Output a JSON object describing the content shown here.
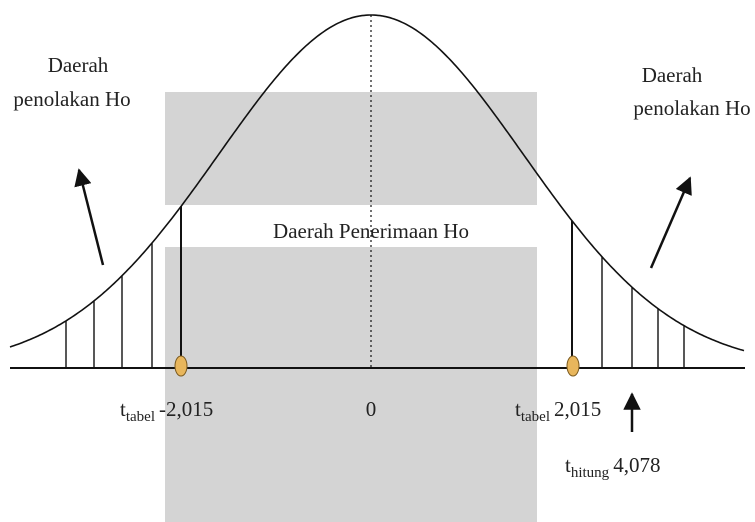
{
  "rejection_left": {
    "line1": "Daerah",
    "line2": "penolakan Ho"
  },
  "rejection_right": {
    "line1": "Daerah",
    "line2": "penolakan Ho"
  },
  "acceptance": "Daerah Penerimaan Ho",
  "center": "0",
  "t_table_left": {
    "symbol": "t",
    "subscript": "tabel",
    "value": "-2,015"
  },
  "t_table_right": {
    "symbol": "t",
    "subscript": "tabel",
    "value": "2,015"
  },
  "t_count": {
    "symbol": "t",
    "subscript": "hitung",
    "value": "4,078"
  }
}
